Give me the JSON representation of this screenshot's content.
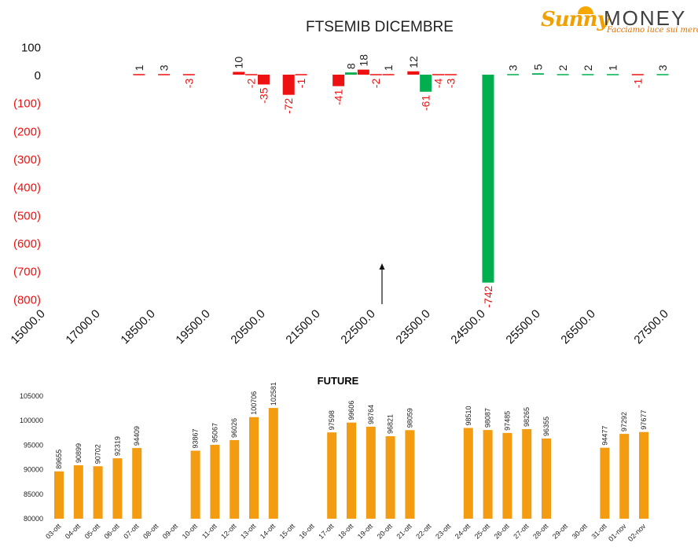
{
  "logo": {
    "brand_left": "Sunny",
    "brand_right": "MONEY",
    "tagline": "Facciamo luce sui mercati"
  },
  "colors": {
    "positive": "#00b050",
    "negative": "#ee1111",
    "future_bar": "#f39c12",
    "text": "#222222"
  },
  "chart_data": [
    {
      "type": "bar",
      "title": "FTSEMIB DICEMBRE",
      "ylim": [
        -800,
        100
      ],
      "yticks": [
        100,
        0,
        -100,
        -200,
        -300,
        -400,
        -500,
        -600,
        -700,
        -800
      ],
      "ytick_labels": [
        "100",
        "0",
        "(100)",
        "(200)",
        "(300)",
        "(400)",
        "(500)",
        "(600)",
        "(700)",
        "(800)"
      ],
      "xticks": [
        15000,
        17000,
        18500,
        19500,
        20500,
        21500,
        22500,
        23500,
        24500,
        25500,
        26500,
        27500
      ],
      "xtick_labels": [
        "15000.0",
        "17000.0",
        "18500.0",
        "19500.0",
        "20500.0",
        "21500.0",
        "22500.0",
        "23500.0",
        "24500.0",
        "25500.0",
        "26500.0",
        "27500.0"
      ],
      "arrow_at_x": 22500,
      "bars": [
        {
          "x": 17000,
          "value": 1,
          "label": "1",
          "color": "red"
        },
        {
          "x": 17500,
          "value": 3,
          "label": "3",
          "color": "red"
        },
        {
          "x": 18000,
          "value": -3,
          "label": "-3",
          "color": "red"
        },
        {
          "x": 19000,
          "value": 10,
          "label": "10",
          "color": "red"
        },
        {
          "x": 19250,
          "value": -2,
          "label": "-2",
          "color": "red"
        },
        {
          "x": 19500,
          "value": -35,
          "label": "-35",
          "color": "red"
        },
        {
          "x": 20000,
          "value": -72,
          "label": "-72",
          "color": "red"
        },
        {
          "x": 20250,
          "value": -1,
          "label": "-1",
          "color": "red"
        },
        {
          "x": 21000,
          "value": -41,
          "label": "-41",
          "color": "red"
        },
        {
          "x": 21250,
          "value": 8,
          "label": "8",
          "color": "green"
        },
        {
          "x": 21500,
          "value": 18,
          "label": "18",
          "color": "red"
        },
        {
          "x": 21750,
          "value": -2,
          "label": "-2",
          "color": "red"
        },
        {
          "x": 22000,
          "value": 1,
          "label": "1",
          "color": "red"
        },
        {
          "x": 22500,
          "value": 12,
          "label": "12",
          "color": "red"
        },
        {
          "x": 22750,
          "value": -61,
          "label": "-61",
          "color": "green"
        },
        {
          "x": 23000,
          "value": -4,
          "label": "-4",
          "color": "red"
        },
        {
          "x": 23250,
          "value": -3,
          "label": "-3",
          "color": "red"
        },
        {
          "x": 24000,
          "value": -742,
          "label": "-742",
          "color": "green"
        },
        {
          "x": 24500,
          "value": 3,
          "label": "3",
          "color": "green"
        },
        {
          "x": 25000,
          "value": 5,
          "label": "5",
          "color": "green"
        },
        {
          "x": 25500,
          "value": 2,
          "label": "2",
          "color": "green"
        },
        {
          "x": 26000,
          "value": 2,
          "label": "2",
          "color": "green"
        },
        {
          "x": 26500,
          "value": 1,
          "label": "1",
          "color": "green"
        },
        {
          "x": 27000,
          "value": -1,
          "label": "-1",
          "color": "red"
        },
        {
          "x": 27500,
          "value": 3,
          "label": "3",
          "color": "green"
        }
      ]
    },
    {
      "type": "bar",
      "title": "FUTURE",
      "ylim": [
        80000,
        105000
      ],
      "yticks": [
        80000,
        85000,
        90000,
        95000,
        100000,
        105000
      ],
      "categories": [
        "03-ott",
        "04-ott",
        "05-ott",
        "06-ott",
        "07-ott",
        "08-ott",
        "09-ott",
        "10-ott",
        "11-ott",
        "12-ott",
        "13-ott",
        "14-ott",
        "15-ott",
        "16-ott",
        "17-ott",
        "18-ott",
        "19-ott",
        "20-ott",
        "21-ott",
        "22-ott",
        "23-ott",
        "24-ott",
        "25-ott",
        "26-ott",
        "27-ott",
        "28-ott",
        "29-ott",
        "30-ott",
        "31-ott",
        "01-nov",
        "02-nov"
      ],
      "values": [
        89655,
        90899,
        90702,
        92319,
        94409,
        null,
        null,
        93867,
        95067,
        96026,
        100706,
        102581,
        null,
        null,
        97598,
        99606,
        98764,
        96821,
        98059,
        null,
        null,
        98510,
        98087,
        97485,
        98265,
        96355,
        null,
        null,
        94477,
        97292,
        97677
      ]
    }
  ]
}
